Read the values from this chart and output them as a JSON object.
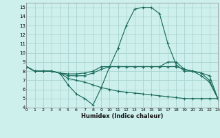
{
  "xlabel": "Humidex (Indice chaleur)",
  "background_color": "#cef0ec",
  "grid_color": "#aad4cf",
  "line_color": "#1a6b5a",
  "xlim": [
    0,
    23
  ],
  "ylim": [
    4,
    15.5
  ],
  "xticks": [
    0,
    1,
    2,
    3,
    4,
    5,
    6,
    7,
    8,
    9,
    10,
    11,
    12,
    13,
    14,
    15,
    16,
    17,
    18,
    19,
    20,
    21,
    22,
    23
  ],
  "yticks": [
    4,
    5,
    6,
    7,
    8,
    9,
    10,
    11,
    12,
    13,
    14,
    15
  ],
  "lines": [
    {
      "x": [
        0,
        1,
        2,
        3,
        4,
        5,
        6,
        7,
        8,
        9,
        10,
        11,
        12,
        13,
        14,
        15,
        16,
        17,
        18,
        19,
        20,
        21,
        22,
        23
      ],
      "y": [
        8.5,
        8.0,
        8.0,
        8.0,
        7.8,
        6.5,
        5.5,
        5.0,
        4.3,
        6.2,
        8.5,
        10.5,
        13.0,
        14.8,
        15.0,
        15.0,
        14.3,
        11.0,
        8.7,
        8.0,
        8.0,
        7.5,
        6.8,
        5.0
      ]
    },
    {
      "x": [
        0,
        1,
        2,
        3,
        4,
        5,
        6,
        7,
        8,
        9,
        10,
        11,
        12,
        13,
        14,
        15,
        16,
        17,
        18,
        19,
        20,
        21,
        22,
        23
      ],
      "y": [
        8.5,
        8.0,
        8.0,
        8.0,
        7.8,
        7.2,
        7.0,
        6.8,
        6.5,
        6.2,
        6.0,
        5.8,
        5.7,
        5.6,
        5.5,
        5.4,
        5.3,
        5.2,
        5.1,
        5.0,
        5.0,
        5.0,
        5.0,
        5.0
      ]
    },
    {
      "x": [
        0,
        1,
        2,
        3,
        4,
        5,
        6,
        7,
        8,
        9,
        10,
        11,
        12,
        13,
        14,
        15,
        16,
        17,
        18,
        19,
        20,
        21,
        22,
        23
      ],
      "y": [
        8.5,
        8.0,
        8.0,
        8.0,
        7.8,
        7.5,
        7.5,
        7.5,
        7.8,
        8.2,
        8.5,
        8.5,
        8.5,
        8.5,
        8.5,
        8.5,
        8.5,
        8.5,
        8.5,
        8.2,
        8.0,
        7.8,
        7.5,
        5.0
      ]
    },
    {
      "x": [
        0,
        1,
        2,
        3,
        4,
        5,
        6,
        7,
        8,
        9,
        10,
        11,
        12,
        13,
        14,
        15,
        16,
        17,
        18,
        19,
        20,
        21,
        22,
        23
      ],
      "y": [
        8.5,
        8.0,
        8.0,
        8.0,
        7.8,
        7.7,
        7.7,
        7.8,
        8.0,
        8.5,
        8.5,
        8.5,
        8.5,
        8.5,
        8.5,
        8.5,
        8.5,
        9.0,
        9.0,
        8.2,
        8.0,
        7.8,
        7.0,
        5.0
      ]
    }
  ]
}
